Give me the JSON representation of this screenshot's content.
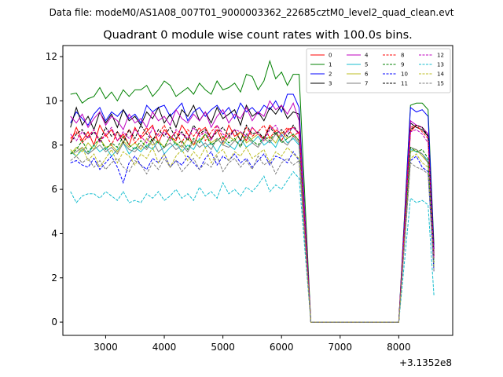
{
  "chart_data": {
    "type": "line",
    "suptitle": "Data file: modeM0/AS1A08_007T01_9000003362_22685cztM0_level2_quad_clean.evt",
    "title": "Quadrant 0 module wise count rates with 100.0s bins.",
    "xlabel": "",
    "ylabel": "",
    "x_offset_label": "+3.1352e8",
    "xlim": [
      2270,
      8920
    ],
    "ylim": [
      -0.6,
      12.5
    ],
    "xticks": [
      3000,
      4000,
      5000,
      6000,
      7000,
      8000
    ],
    "xtick_labels": [
      "3000",
      "4000",
      "5000",
      "6000",
      "7000",
      "8000"
    ],
    "yticks": [
      0,
      2,
      4,
      6,
      8,
      10,
      12
    ],
    "ytick_labels": [
      "0",
      "2",
      "4",
      "6",
      "8",
      "10",
      "12"
    ],
    "grid": false,
    "legend_position": "top-right",
    "legend_columns": 4,
    "x": [
      2400,
      2500,
      2600,
      2700,
      2800,
      2900,
      3000,
      3100,
      3200,
      3300,
      3400,
      3500,
      3600,
      3700,
      3800,
      3900,
      4000,
      4100,
      4200,
      4300,
      4400,
      4500,
      4600,
      4700,
      4800,
      4900,
      5000,
      5100,
      5200,
      5300,
      5400,
      5500,
      5600,
      5700,
      5800,
      5900,
      6000,
      6100,
      6200,
      6300,
      6400,
      6500,
      6600,
      6700,
      6800,
      6900,
      7000,
      7100,
      7200,
      7300,
      7400,
      7500,
      7600,
      7700,
      7800,
      7900,
      8000,
      8100,
      8200,
      8300,
      8400,
      8500,
      8600
    ],
    "series": [
      {
        "name": "0",
        "color": "#ff0000",
        "dash": "solid",
        "values": [
          8.1,
          8.8,
          8.2,
          8.6,
          8.0,
          8.9,
          8.4,
          8.7,
          8.2,
          8.5,
          8.0,
          8.8,
          8.3,
          8.6,
          8.9,
          8.1,
          8.7,
          8.4,
          8.2,
          8.9,
          8.5,
          8.0,
          8.6,
          8.8,
          8.3,
          8.7,
          8.1,
          8.9,
          8.4,
          8.6,
          8.2,
          8.8,
          8.5,
          8.3,
          8.9,
          8.6,
          8.2,
          8.7,
          8.8,
          8.5,
          4.0,
          0.0,
          0.0,
          0.0,
          0.0,
          0.0,
          0.0,
          0.0,
          0.0,
          0.0,
          0.0,
          0.0,
          0.0,
          0.0,
          0.0,
          0.0,
          0.0,
          4.3,
          8.6,
          8.9,
          8.8,
          8.5,
          3.0
        ]
      },
      {
        "name": "1",
        "color": "#008000",
        "dash": "solid",
        "values": [
          10.3,
          10.35,
          9.9,
          10.1,
          10.2,
          10.6,
          10.1,
          10.4,
          10.0,
          10.5,
          10.2,
          10.5,
          10.5,
          10.7,
          10.2,
          10.5,
          10.9,
          10.7,
          10.2,
          10.4,
          10.6,
          10.3,
          10.8,
          10.5,
          10.3,
          10.9,
          10.5,
          10.6,
          10.8,
          10.4,
          11.2,
          11.1,
          10.5,
          10.9,
          11.8,
          11.0,
          11.3,
          10.7,
          11.2,
          11.2,
          5.5,
          0.0,
          0.0,
          0.0,
          0.0,
          0.0,
          0.0,
          0.0,
          0.0,
          0.0,
          0.0,
          0.0,
          0.0,
          0.0,
          0.0,
          0.0,
          0.0,
          4.9,
          9.8,
          9.9,
          9.9,
          9.6,
          3.5
        ]
      },
      {
        "name": "2",
        "color": "#0000ff",
        "dash": "solid",
        "values": [
          9.0,
          9.5,
          9.2,
          8.9,
          9.4,
          9.7,
          9.1,
          9.5,
          9.3,
          9.6,
          9.2,
          9.4,
          9.0,
          9.8,
          9.5,
          9.7,
          9.8,
          9.3,
          9.6,
          9.9,
          9.1,
          9.5,
          9.7,
          9.3,
          9.6,
          9.8,
          9.4,
          9.7,
          9.2,
          9.9,
          9.5,
          9.7,
          9.4,
          9.8,
          9.6,
          10.0,
          9.5,
          10.3,
          10.3,
          9.7,
          4.8,
          0.0,
          0.0,
          0.0,
          0.0,
          0.0,
          0.0,
          0.0,
          0.0,
          0.0,
          0.0,
          0.0,
          0.0,
          0.0,
          0.0,
          0.0,
          0.0,
          4.8,
          9.7,
          9.5,
          9.6,
          9.3,
          3.3
        ]
      },
      {
        "name": "3",
        "color": "#000000",
        "dash": "solid",
        "values": [
          8.8,
          9.7,
          8.9,
          9.3,
          8.7,
          9.5,
          9.0,
          9.4,
          8.8,
          9.6,
          9.1,
          9.3,
          8.9,
          9.5,
          9.2,
          9.7,
          9.0,
          9.4,
          8.8,
          9.6,
          9.3,
          9.8,
          9.1,
          9.5,
          9.0,
          9.7,
          9.2,
          9.4,
          9.6,
          8.9,
          9.8,
          9.3,
          9.5,
          9.1,
          9.7,
          9.4,
          9.8,
          9.2,
          9.5,
          9.4,
          4.6,
          0.0,
          0.0,
          0.0,
          0.0,
          0.0,
          0.0,
          0.0,
          0.0,
          0.0,
          0.0,
          0.0,
          0.0,
          0.0,
          0.0,
          0.0,
          0.0,
          4.5,
          9.0,
          8.8,
          8.7,
          8.4,
          3.1
        ]
      },
      {
        "name": "4",
        "color": "#bf00bf",
        "dash": "solid",
        "values": [
          9.3,
          9.0,
          9.4,
          8.8,
          9.2,
          9.5,
          8.9,
          9.3,
          9.1,
          8.7,
          9.4,
          9.0,
          9.2,
          8.8,
          9.5,
          9.1,
          9.3,
          8.9,
          9.6,
          9.2,
          9.0,
          9.4,
          9.1,
          9.5,
          8.8,
          9.3,
          9.6,
          9.0,
          9.4,
          9.2,
          9.7,
          9.1,
          9.5,
          9.3,
          10.0,
          9.6,
          9.8,
          9.4,
          9.9,
          9.1,
          4.7,
          0.0,
          0.0,
          0.0,
          0.0,
          0.0,
          0.0,
          0.0,
          0.0,
          0.0,
          0.0,
          0.0,
          0.0,
          0.0,
          0.0,
          0.0,
          0.0,
          4.6,
          9.1,
          8.9,
          8.8,
          8.5,
          3.0
        ]
      },
      {
        "name": "5",
        "color": "#17becf",
        "dash": "solid",
        "values": [
          7.7,
          7.5,
          7.8,
          7.6,
          8.0,
          7.7,
          7.9,
          7.5,
          7.8,
          8.1,
          7.6,
          7.9,
          7.7,
          8.0,
          7.8,
          8.2,
          7.6,
          7.9,
          8.1,
          7.7,
          8.0,
          7.8,
          8.3,
          7.9,
          8.1,
          7.7,
          8.2,
          8.0,
          7.8,
          8.3,
          7.9,
          8.1,
          8.4,
          8.0,
          8.2,
          7.9,
          8.5,
          8.1,
          8.3,
          8.0,
          4.0,
          0.0,
          0.0,
          0.0,
          0.0,
          0.0,
          0.0,
          0.0,
          0.0,
          0.0,
          0.0,
          0.0,
          0.0,
          0.0,
          0.0,
          0.0,
          0.0,
          3.9,
          7.8,
          7.7,
          7.6,
          7.3,
          2.6
        ]
      },
      {
        "name": "6",
        "color": "#bcbd22",
        "dash": "solid",
        "values": [
          7.6,
          7.9,
          7.7,
          8.1,
          7.8,
          8.3,
          7.9,
          8.0,
          7.7,
          8.2,
          7.9,
          8.1,
          7.8,
          8.3,
          8.0,
          8.2,
          7.9,
          8.4,
          8.1,
          7.9,
          8.3,
          8.0,
          8.2,
          8.5,
          8.1,
          8.3,
          8.0,
          8.4,
          8.2,
          8.6,
          8.1,
          8.3,
          8.5,
          8.2,
          8.4,
          8.1,
          8.6,
          8.3,
          8.5,
          8.2,
          4.1,
          0.0,
          0.0,
          0.0,
          0.0,
          0.0,
          0.0,
          0.0,
          0.0,
          0.0,
          0.0,
          0.0,
          0.0,
          0.0,
          0.0,
          0.0,
          0.0,
          3.8,
          7.7,
          7.8,
          7.5,
          7.2,
          2.5
        ]
      },
      {
        "name": "7",
        "color": "#7f7f7f",
        "dash": "solid",
        "values": [
          7.6,
          7.7,
          7.9,
          7.6,
          7.8,
          8.0,
          7.7,
          7.9,
          7.6,
          8.1,
          7.8,
          7.7,
          8.0,
          7.8,
          8.2,
          7.7,
          7.9,
          8.1,
          7.8,
          8.0,
          7.7,
          8.2,
          7.9,
          8.1,
          7.8,
          8.3,
          8.0,
          7.9,
          8.2,
          8.0,
          8.4,
          8.1,
          7.9,
          8.3,
          8.1,
          8.5,
          8.2,
          8.0,
          8.4,
          8.1,
          4.0,
          0.0,
          0.0,
          0.0,
          0.0,
          0.0,
          0.0,
          0.0,
          0.0,
          0.0,
          0.0,
          0.0,
          0.0,
          0.0,
          0.0,
          0.0,
          0.0,
          3.9,
          7.9,
          7.8,
          7.6,
          7.2,
          2.5
        ]
      },
      {
        "name": "8",
        "color": "#ff0000",
        "dash": "dashed",
        "values": [
          8.3,
          8.6,
          8.1,
          8.4,
          8.7,
          8.2,
          8.5,
          8.0,
          8.6,
          8.3,
          8.7,
          8.1,
          8.4,
          8.8,
          8.2,
          8.5,
          8.9,
          8.3,
          8.6,
          8.1,
          8.7,
          8.4,
          8.8,
          8.2,
          8.6,
          8.9,
          8.3,
          8.5,
          8.7,
          8.2,
          8.8,
          8.4,
          8.6,
          8.9,
          8.3,
          8.7,
          8.5,
          8.8,
          8.4,
          8.6,
          4.3,
          0.0,
          0.0,
          0.0,
          0.0,
          0.0,
          0.0,
          0.0,
          0.0,
          0.0,
          0.0,
          0.0,
          0.0,
          0.0,
          0.0,
          0.0,
          0.0,
          4.4,
          8.8,
          8.9,
          8.6,
          8.3,
          2.9
        ]
      },
      {
        "name": "9",
        "color": "#008000",
        "dash": "dashed",
        "values": [
          7.6,
          7.8,
          8.2,
          7.7,
          8.0,
          8.3,
          7.8,
          8.1,
          7.9,
          8.4,
          8.0,
          7.8,
          8.2,
          7.9,
          8.3,
          8.1,
          7.9,
          8.4,
          8.0,
          8.2,
          7.8,
          8.3,
          8.1,
          8.5,
          8.0,
          8.2,
          8.4,
          8.1,
          8.3,
          7.9,
          8.5,
          8.2,
          8.0,
          8.4,
          8.2,
          8.6,
          8.1,
          8.3,
          8.5,
          8.2,
          4.1,
          0.0,
          0.0,
          0.0,
          0.0,
          0.0,
          0.0,
          0.0,
          0.0,
          0.0,
          0.0,
          0.0,
          0.0,
          0.0,
          0.0,
          0.0,
          0.0,
          3.9,
          7.9,
          7.7,
          7.8,
          7.4,
          2.7
        ]
      },
      {
        "name": "10",
        "color": "#0000ff",
        "dash": "dashed",
        "values": [
          7.2,
          7.3,
          7.1,
          7.0,
          7.4,
          6.9,
          7.2,
          7.5,
          7.0,
          6.3,
          7.2,
          7.5,
          7.1,
          6.9,
          7.4,
          7.2,
          7.6,
          7.0,
          7.3,
          7.1,
          7.5,
          7.2,
          6.9,
          7.4,
          7.7,
          7.1,
          7.5,
          7.3,
          7.6,
          7.2,
          7.4,
          7.0,
          7.3,
          7.6,
          7.1,
          7.5,
          7.4,
          7.2,
          7.7,
          7.3,
          3.7,
          0.0,
          0.0,
          0.0,
          0.0,
          0.0,
          0.0,
          0.0,
          0.0,
          0.0,
          0.0,
          0.0,
          0.0,
          0.0,
          0.0,
          0.0,
          0.0,
          3.6,
          7.3,
          7.5,
          7.0,
          6.8,
          2.3
        ]
      },
      {
        "name": "11",
        "color": "#000000",
        "dash": "dashed",
        "values": [
          8.1,
          8.5,
          8.7,
          8.3,
          8.6,
          8.2,
          8.8,
          8.4,
          8.6,
          8.1,
          8.7,
          8.3,
          8.9,
          8.5,
          8.2,
          8.7,
          8.4,
          8.8,
          8.3,
          8.6,
          8.2,
          8.9,
          8.5,
          8.7,
          8.3,
          8.6,
          8.8,
          8.4,
          8.7,
          8.2,
          8.9,
          8.5,
          8.6,
          8.3,
          8.8,
          8.5,
          8.7,
          8.4,
          8.9,
          8.5,
          4.3,
          0.0,
          0.0,
          0.0,
          0.0,
          0.0,
          0.0,
          0.0,
          0.0,
          0.0,
          0.0,
          0.0,
          0.0,
          0.0,
          0.0,
          0.0,
          0.0,
          4.4,
          8.7,
          8.9,
          8.8,
          8.4,
          3.0
        ]
      },
      {
        "name": "12",
        "color": "#bf00bf",
        "dash": "dashed",
        "values": [
          8.5,
          8.2,
          8.6,
          8.3,
          8.7,
          8.1,
          8.5,
          8.8,
          8.2,
          8.6,
          8.3,
          8.7,
          8.4,
          8.1,
          8.8,
          8.4,
          8.6,
          8.2,
          8.7,
          8.5,
          8.3,
          8.8,
          8.4,
          8.6,
          8.2,
          8.9,
          8.5,
          8.3,
          8.7,
          8.6,
          8.4,
          8.8,
          8.5,
          8.2,
          8.7,
          8.9,
          8.4,
          8.6,
          8.8,
          8.5,
          4.2,
          0.0,
          0.0,
          0.0,
          0.0,
          0.0,
          0.0,
          0.0,
          0.0,
          0.0,
          0.0,
          0.0,
          0.0,
          0.0,
          0.0,
          0.0,
          0.0,
          4.3,
          8.6,
          8.7,
          8.5,
          8.1,
          2.9
        ]
      },
      {
        "name": "13",
        "color": "#17becf",
        "dash": "dashed",
        "values": [
          5.9,
          5.4,
          5.7,
          5.8,
          5.8,
          5.6,
          5.9,
          5.7,
          5.5,
          5.9,
          5.4,
          5.5,
          5.4,
          5.8,
          5.6,
          5.9,
          5.5,
          5.7,
          6.0,
          5.6,
          5.8,
          5.5,
          6.1,
          5.7,
          5.9,
          5.6,
          6.3,
          5.8,
          6.0,
          5.7,
          6.1,
          5.9,
          6.2,
          6.6,
          5.9,
          6.2,
          6.0,
          6.4,
          6.8,
          6.5,
          3.2,
          0.0,
          0.0,
          0.0,
          0.0,
          0.0,
          0.0,
          0.0,
          0.0,
          0.0,
          0.0,
          0.0,
          0.0,
          0.0,
          0.0,
          0.0,
          0.0,
          2.8,
          5.6,
          5.4,
          5.5,
          5.3,
          1.2
        ]
      },
      {
        "name": "14",
        "color": "#bcbd22",
        "dash": "dashed",
        "values": [
          7.8,
          7.5,
          7.9,
          7.3,
          7.6,
          7.0,
          7.4,
          7.8,
          7.2,
          7.7,
          7.5,
          7.1,
          7.6,
          7.4,
          7.9,
          7.2,
          7.6,
          7.0,
          7.5,
          7.8,
          7.3,
          7.7,
          7.4,
          7.9,
          7.2,
          7.6,
          7.8,
          7.3,
          7.7,
          7.5,
          7.9,
          7.4,
          7.6,
          7.8,
          7.2,
          7.7,
          7.5,
          7.9,
          7.6,
          7.4,
          3.7,
          0.0,
          0.0,
          0.0,
          0.0,
          0.0,
          0.0,
          0.0,
          0.0,
          0.0,
          0.0,
          0.0,
          0.0,
          0.0,
          0.0,
          0.0,
          0.0,
          3.7,
          7.4,
          7.6,
          7.2,
          7.0,
          2.4
        ]
      },
      {
        "name": "15",
        "color": "#7f7f7f",
        "dash": "dashed",
        "values": [
          7.3,
          7.5,
          7.2,
          7.4,
          7.0,
          7.3,
          6.9,
          7.2,
          7.4,
          7.0,
          6.8,
          7.3,
          7.1,
          6.7,
          7.2,
          6.9,
          7.4,
          7.0,
          7.3,
          6.8,
          7.1,
          7.4,
          6.9,
          7.2,
          7.0,
          7.5,
          6.8,
          7.2,
          7.4,
          7.0,
          7.3,
          6.9,
          7.5,
          7.1,
          7.3,
          6.7,
          7.2,
          7.4,
          7.1,
          7.3,
          3.6,
          0.0,
          0.0,
          0.0,
          0.0,
          0.0,
          0.0,
          0.0,
          0.0,
          0.0,
          0.0,
          0.0,
          0.0,
          0.0,
          0.0,
          0.0,
          0.0,
          3.6,
          7.2,
          7.0,
          6.9,
          6.7,
          2.3
        ]
      }
    ]
  }
}
